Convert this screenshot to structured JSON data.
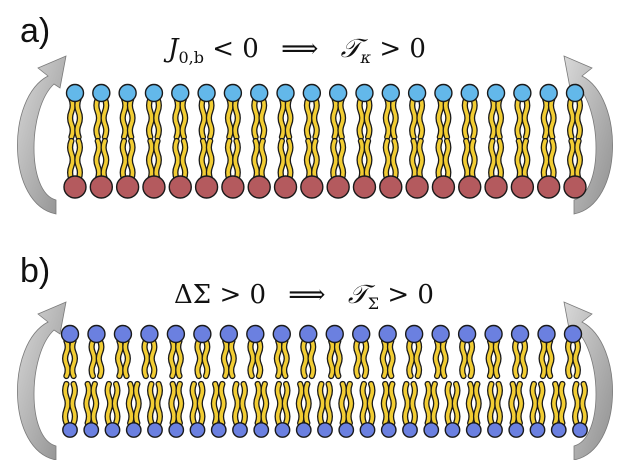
{
  "panels": [
    {
      "id": "a",
      "label": "a)",
      "equation": {
        "lhs_symbol": "J",
        "lhs_sub": "0,b",
        "lhs_rel": "< 0",
        "implies": "⟹",
        "rhs_symbol": "𝒯",
        "rhs_sub": "κ",
        "rhs_rel": "> 0"
      },
      "colors": {
        "top_head": "#63b8ea",
        "bottom_head": "#b45a5e",
        "tail": "#f2cd33"
      },
      "lipid_count": 20
    },
    {
      "id": "b",
      "label": "b)",
      "equation": {
        "lhs_symbol": "ΔΣ",
        "lhs_rel": "> 0",
        "implies": "⟹",
        "rhs_symbol": "𝒯",
        "rhs_sub": "Σ",
        "rhs_rel": "> 0"
      },
      "colors": {
        "top_head": "#6b80e0",
        "bottom_head": "#6b80e0",
        "tail": "#f2cd33"
      },
      "lipid_count_top": 20,
      "lipid_count_bottom": 25
    }
  ]
}
